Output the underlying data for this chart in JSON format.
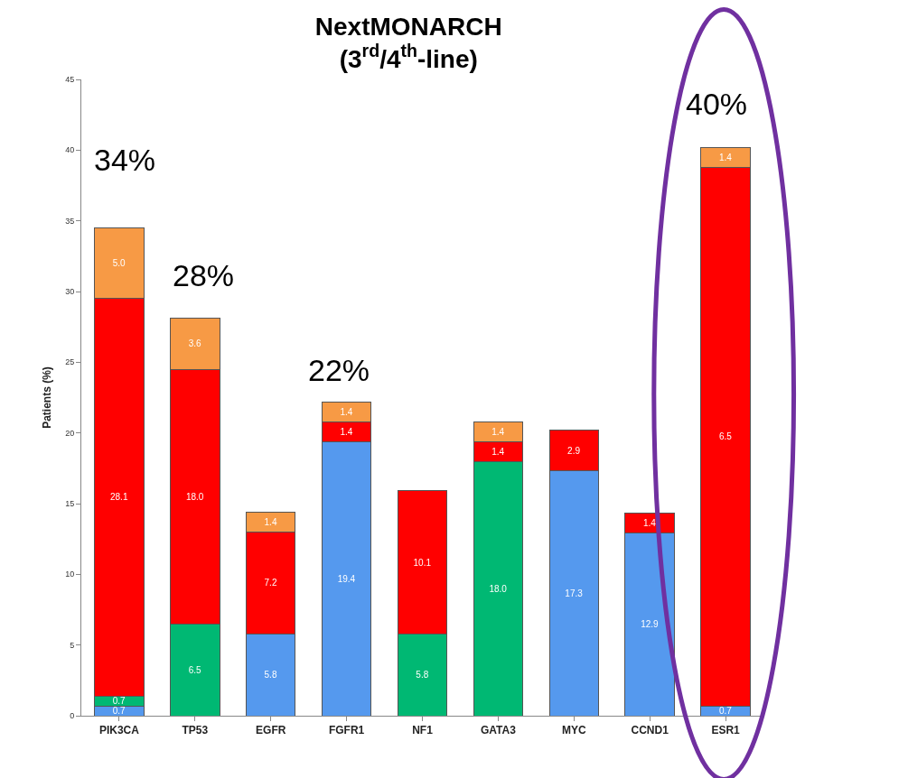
{
  "chart_data": {
    "type": "bar",
    "stacked": true,
    "title": "NextMONARCH\n(3$^{rd}$/4$^{th}$-line)",
    "ylabel": "Patients (%)",
    "categories": [
      "PIK3CA",
      "TP53",
      "EGFR",
      "FGFR1",
      "NF1",
      "GATA3",
      "MYC",
      "CCND1",
      "ESR1"
    ],
    "series": [
      {
        "color": "#5599ee",
        "values": [
          0.7,
          null,
          5.8,
          19.4,
          null,
          null,
          17.3,
          12.9,
          0.7
        ],
        "value_labels": [
          "0.7",
          null,
          "5.8",
          "19.4",
          null,
          null,
          "17.3",
          "12.9",
          "0.7"
        ]
      },
      {
        "color": "#00b873",
        "values": [
          0.7,
          6.5,
          null,
          null,
          5.8,
          18.0,
          null,
          null,
          null
        ],
        "value_labels": [
          "0.7",
          "6.5",
          null,
          null,
          "5.8",
          "18.0",
          null,
          null,
          null
        ]
      },
      {
        "color": "#ff0000",
        "values": [
          28.1,
          18.0,
          7.2,
          1.4,
          10.1,
          1.4,
          2.9,
          1.4,
          38.1
        ],
        "value_labels": [
          "28.1",
          "18.0",
          "7.2",
          "1.4",
          "10.1",
          "1.4",
          "2.9",
          "1.4",
          null
        ]
      },
      {
        "color": "#f79a45",
        "values": [
          5.0,
          3.6,
          1.4,
          1.4,
          null,
          1.4,
          null,
          null,
          1.4
        ],
        "value_labels": [
          "5.0",
          "3.6",
          "1.4",
          "1.4",
          null,
          "1.4",
          null,
          null,
          "1.4"
        ]
      }
    ],
    "ylim": [
      0,
      45
    ],
    "yticks": [
      0,
      5,
      10,
      15,
      20,
      25,
      30,
      35,
      40,
      45
    ],
    "grid": false,
    "annotations": [
      "34%",
      "28%",
      "22%",
      "40%",
      "6.5"
    ]
  }
}
